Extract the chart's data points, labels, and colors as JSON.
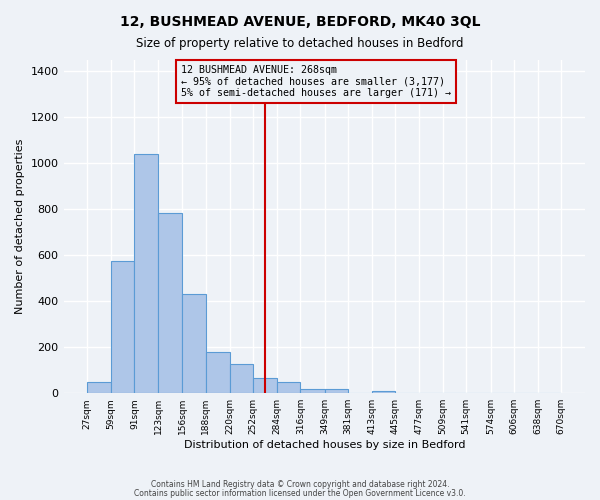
{
  "title": "12, BUSHMEAD AVENUE, BEDFORD, MK40 3QL",
  "subtitle": "Size of property relative to detached houses in Bedford",
  "xlabel": "Distribution of detached houses by size in Bedford",
  "ylabel": "Number of detached properties",
  "bar_color": "#aec6e8",
  "bar_edge_color": "#5b9bd5",
  "background_color": "#eef2f7",
  "grid_color": "#ffffff",
  "annotation_box_color": "#cc0000",
  "vline_color": "#cc0000",
  "vline_x": 268,
  "annotation_title": "12 BUSHMEAD AVENUE: 268sqm",
  "annotation_line1": "← 95% of detached houses are smaller (3,177)",
  "annotation_line2": "5% of semi-detached houses are larger (171) →",
  "bin_edges": [
    27,
    59,
    91,
    123,
    156,
    188,
    220,
    252,
    284,
    316,
    349,
    381,
    413,
    445,
    477,
    509,
    541,
    574,
    606,
    638,
    670
  ],
  "bin_counts": [
    50,
    575,
    1040,
    785,
    430,
    180,
    125,
    65,
    50,
    20,
    20,
    0,
    8,
    0,
    0,
    0,
    0,
    0,
    0,
    0
  ],
  "ylim": [
    0,
    1450
  ],
  "yticks": [
    0,
    200,
    400,
    600,
    800,
    1000,
    1200,
    1400
  ],
  "footer1": "Contains HM Land Registry data © Crown copyright and database right 2024.",
  "footer2": "Contains public sector information licensed under the Open Government Licence v3.0."
}
